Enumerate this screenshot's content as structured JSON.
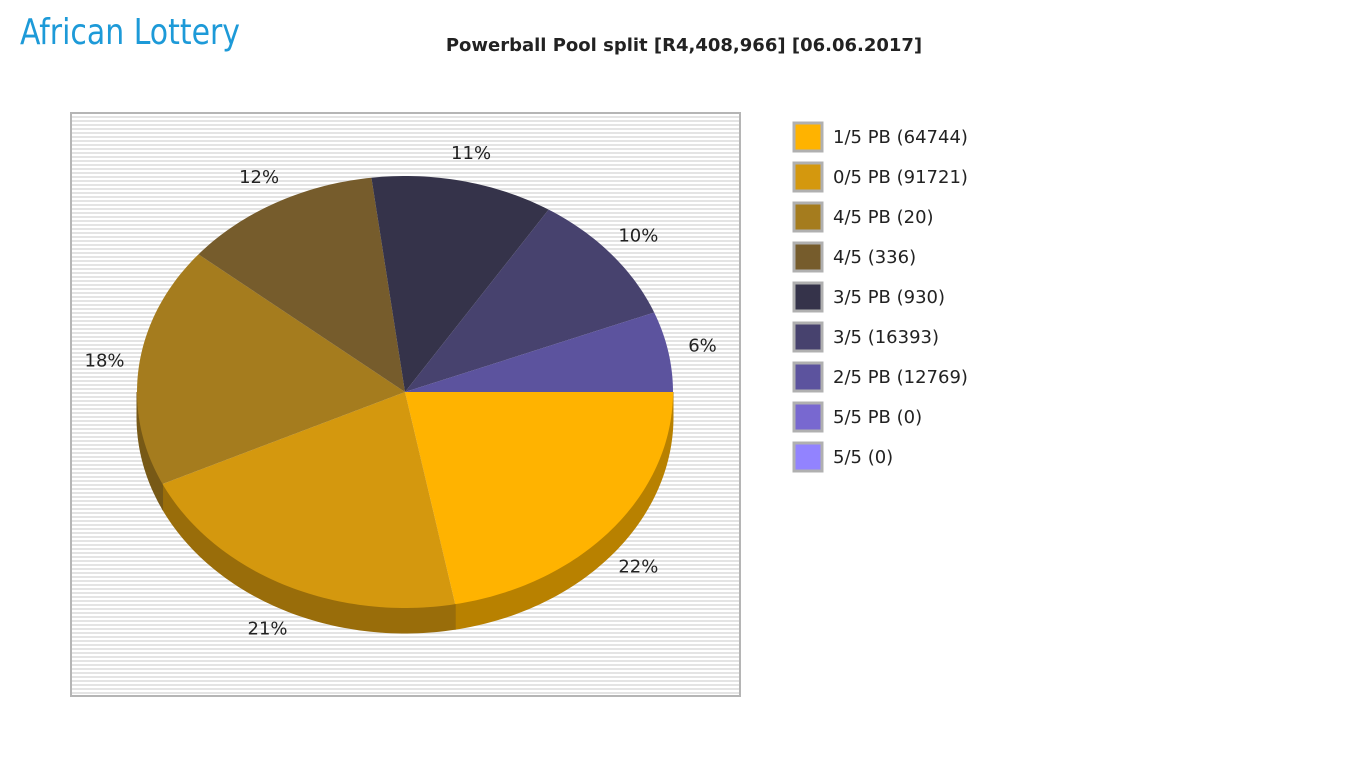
{
  "logo": "African Lottery",
  "chart_data": {
    "type": "pie",
    "title": "Powerball Pool split [R4,408,966] [06.06.2017]",
    "categories": [
      "1/5 PB (64744)",
      "0/5 PB (91721)",
      "4/5 PB (20)",
      "4/5 (336)",
      "3/5 PB (930)",
      "3/5 (16393)",
      "2/5 PB (12769)",
      "5/5 PB (0)",
      "5/5 (0)"
    ],
    "values": [
      22,
      21,
      18,
      12,
      11,
      10,
      6,
      0,
      0
    ],
    "value_labels": [
      "22%",
      "21%",
      "18%",
      "12%",
      "11%",
      "10%",
      "6%",
      null,
      null
    ],
    "colors": [
      "#ffb300",
      "#d4980e",
      "#a57c1e",
      "#765c2c",
      "#35334a",
      "#47426e",
      "#5c539e",
      "#7868d0",
      "#9283ff"
    ],
    "legend": "right"
  }
}
